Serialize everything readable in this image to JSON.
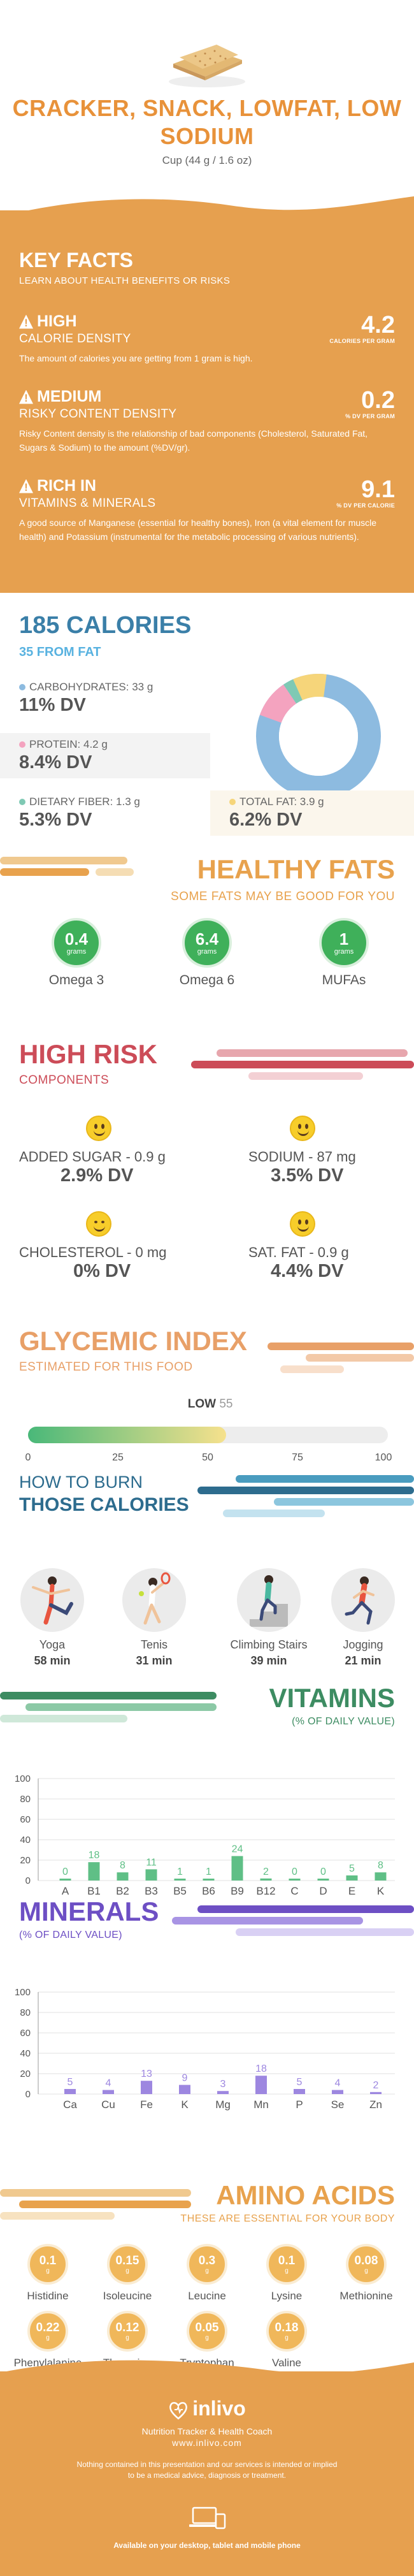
{
  "header": {
    "title": "CRACKER, SNACK, LOWFAT, LOW SODIUM",
    "serving": "Cup (44 g / 1.6 oz)"
  },
  "key_facts": {
    "title": "KEY FACTS",
    "subtitle": "LEARN ABOUT HEALTH BENEFITS OR RISKS",
    "items": [
      {
        "level": "HIGH",
        "category": "CALORIE DENSITY",
        "value": "4.2",
        "unit": "CALORIES PER GRAM",
        "description": "The amount of calories you are getting from 1 gram is high."
      },
      {
        "level": "MEDIUM",
        "category": "RISKY CONTENT DENSITY",
        "value": "0.2",
        "unit": "% DV PER GRAM",
        "description": "Risky Content density is the relationship of bad components (Cholesterol, Saturated Fat, Sugars & Sodium) to the amount (%DV/gr)."
      },
      {
        "level": "RICH IN",
        "category": "VITAMINS & MINERALS",
        "value": "9.1",
        "unit": "% DV PER CALORIE",
        "description": "A good source of Manganese (essential for healthy bones), Iron (a vital element for muscle health) and Potassium (instrumental for the metabolic processing of various nutrients)."
      }
    ]
  },
  "calories": {
    "title": "185 CALORIES",
    "subtitle": "35 FROM FAT",
    "nutrients": [
      {
        "name": "CARBOHYDRATES: 33 g",
        "dv": "11% DV",
        "color": "#8dbbe0"
      },
      {
        "name": "PROTEIN: 4.2 g",
        "dv": "8.4% DV",
        "color": "#f4a3bf"
      },
      {
        "name": "DIETARY FIBER: 1.3 g",
        "dv": "5.3% DV",
        "color": "#7fc9b4"
      },
      {
        "name": "TOTAL FAT: 3.9 g",
        "dv": "6.2% DV",
        "color": "#f6d57a"
      }
    ]
  },
  "healthy_fats": {
    "title": "HEALTHY FATS",
    "subtitle": "SOME FATS MAY BE GOOD FOR YOU",
    "items": [
      {
        "value": "0.4",
        "unit": "grams",
        "label": "Omega 3"
      },
      {
        "value": "6.4",
        "unit": "grams",
        "label": "Omega 6"
      },
      {
        "value": "1",
        "unit": "grams",
        "label": "MUFAs"
      }
    ]
  },
  "high_risk": {
    "title": "HIGH RISK",
    "subtitle": "COMPONENTS",
    "items": [
      {
        "name": "ADDED SUGAR - 0.9 g",
        "dv": "2.9% DV"
      },
      {
        "name": "SODIUM - 87 mg",
        "dv": "3.5% DV"
      },
      {
        "name": "CHOLESTEROL - 0 mg",
        "dv": "0% DV"
      },
      {
        "name": "SAT. FAT - 0.9 g",
        "dv": "4.4% DV"
      }
    ]
  },
  "glycemic": {
    "title": "GLYCEMIC INDEX",
    "subtitle": "ESTIMATED FOR THIS FOOD",
    "level": "LOW",
    "value": "55",
    "value_num": 55,
    "ticks": [
      "0",
      "25",
      "50",
      "75",
      "100"
    ]
  },
  "burn": {
    "title_line1": "HOW TO BURN",
    "title_line2": "THOSE CALORIES",
    "activities": [
      {
        "name": "Yoga",
        "minutes": "58 min",
        "icon": "yoga-icon"
      },
      {
        "name": "Tenis",
        "minutes": "31 min",
        "icon": "tennis-icon"
      },
      {
        "name": "Climbing Stairs",
        "minutes": "39 min",
        "icon": "stairs-icon"
      },
      {
        "name": "Jogging",
        "minutes": "21 min",
        "icon": "jogging-icon"
      }
    ]
  },
  "vitamins": {
    "title": "VITAMINS",
    "subtitle": "(% OF DAILY VALUE)",
    "chart_data": {
      "type": "bar",
      "categories": [
        "A",
        "B1",
        "B2",
        "B3",
        "B5",
        "B6",
        "B9",
        "B12",
        "C",
        "D",
        "E",
        "K"
      ],
      "values": [
        0,
        18,
        8,
        11,
        1,
        1,
        24,
        2,
        0,
        0,
        5,
        8
      ],
      "yticks": [
        "0",
        "20",
        "40",
        "60",
        "80",
        "100"
      ],
      "ylim": [
        0,
        100
      ],
      "color": "#5fbf86"
    }
  },
  "minerals": {
    "title": "MINERALS",
    "subtitle": "(% OF DAILY VALUE)",
    "chart_data": {
      "type": "bar",
      "categories": [
        "Ca",
        "Cu",
        "Fe",
        "K",
        "Mg",
        "Mn",
        "P",
        "Se",
        "Zn"
      ],
      "values": [
        5,
        4,
        13,
        9,
        3,
        18,
        5,
        4,
        2
      ],
      "yticks": [
        "0",
        "20",
        "40",
        "60",
        "80",
        "100"
      ],
      "ylim": [
        0,
        100
      ],
      "color": "#9d87e0"
    }
  },
  "amino_acids": {
    "title": "AMINO ACIDS",
    "subtitle": "THESE ARE ESSENTIAL FOR YOUR BODY",
    "items": [
      {
        "value": "0.1",
        "unit": "g",
        "label": "Histidine"
      },
      {
        "value": "0.15",
        "unit": "g",
        "label": "Isoleucine"
      },
      {
        "value": "0.3",
        "unit": "g",
        "label": "Leucine"
      },
      {
        "value": "0.1",
        "unit": "g",
        "label": "Lysine"
      },
      {
        "value": "0.08",
        "unit": "g",
        "label": "Methionine"
      },
      {
        "value": "0.22",
        "unit": "g",
        "label": "Phenylalanine"
      },
      {
        "value": "0.12",
        "unit": "g",
        "label": "Threonine"
      },
      {
        "value": "0.05",
        "unit": "g",
        "label": "Tryptophan"
      },
      {
        "value": "0.18",
        "unit": "g",
        "label": "Valine"
      }
    ]
  },
  "footer": {
    "brand": "inlivo",
    "tagline": "Nutrition Tracker & Health Coach",
    "site": "www.inlivo.com",
    "disclaimer": "Nothing contained in this presentation and our services is intended or implied to be a medical advice, diagnosis or treatment.",
    "available": "Available on your desktop, tablet and mobile phone"
  }
}
